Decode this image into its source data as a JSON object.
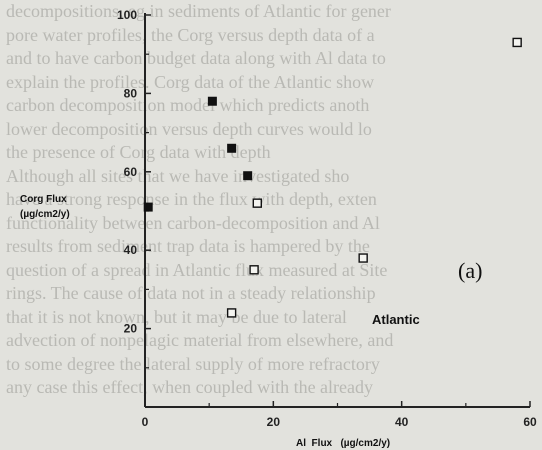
{
  "background_text_lines": [
    "decompositions, eg in sediments of Atlantic for gener",
    "pore water profiles, the Corg versus depth data of a",
    "and to have carbon budget data along with Al data to",
    "explain the profiles. Corg data of the Atlantic show",
    "carbon decomposition model which predicts anoth",
    "lower decomposition versus depth curves would lo",
    "the presence of Corg data with depth",
    "Although all sites that we have investigated sho",
    "have a strong response in the flux with depth, exten",
    "functionality between carbon-decomposition and Al",
    "results from sediment trap data is hampered by the",
    "question of a spread in Atlantic flux measured at Site",
    "rings. The cause of data not in a steady relationship",
    "that it is not known, but it may be due to lateral",
    "advection of nonpelagic material from elsewhere, and",
    "to some degree the lateral supply of more refractory",
    "any case this effect, when coupled with the already"
  ],
  "chart_data": {
    "type": "scatter",
    "ylabel_lines": [
      "Corg Flux",
      "(µg/cm2/y)"
    ],
    "xlabel": "Al  Flux   (µg/cm2/y)",
    "annotation": "Atlantic",
    "panel_label": "(a)",
    "xlim": [
      0,
      60
    ],
    "ylim": [
      0,
      100
    ],
    "xticks": [
      0,
      20,
      40,
      60
    ],
    "xtick_labels": [
      "0",
      "20",
      "40",
      "60"
    ],
    "yticks": [
      0,
      20,
      40,
      60,
      80,
      100
    ],
    "ytick_labels": [
      "",
      "20",
      "40",
      "60",
      "80",
      "100"
    ],
    "grid": false,
    "series": [
      {
        "marker": "filled-square",
        "points": [
          {
            "x": 0.5,
            "y": 51
          },
          {
            "x": 10.5,
            "y": 78
          },
          {
            "x": 13.5,
            "y": 66
          },
          {
            "x": 16,
            "y": 59
          }
        ]
      },
      {
        "marker": "open-square",
        "points": [
          {
            "x": 13.5,
            "y": 24
          },
          {
            "x": 17,
            "y": 35
          },
          {
            "x": 17.5,
            "y": 52
          },
          {
            "x": 34,
            "y": 38
          },
          {
            "x": 58,
            "y": 93
          }
        ]
      }
    ],
    "colors": {
      "marker": "#111111",
      "axis": "#222222"
    }
  }
}
